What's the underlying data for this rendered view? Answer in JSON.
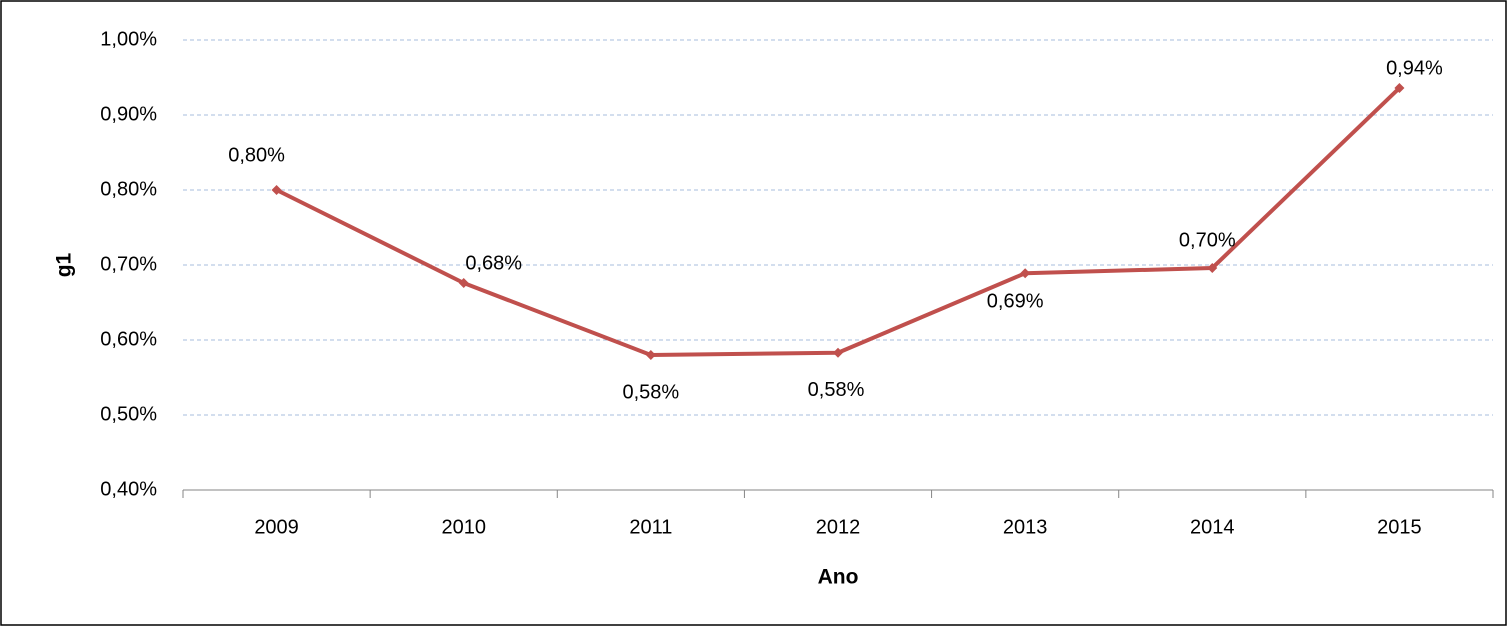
{
  "chart_data": {
    "type": "line",
    "x_label": "Ano",
    "y_label": "g1",
    "categories": [
      "2009",
      "2010",
      "2011",
      "2012",
      "2013",
      "2014",
      "2015"
    ],
    "series": [
      {
        "name": "g1",
        "color": "#c0504d",
        "values": [
          0.8,
          0.676,
          0.58,
          0.583,
          0.689,
          0.696,
          0.936
        ],
        "value_labels": [
          "0,80%",
          "0,68%",
          "0,58%",
          "0,58%",
          "0,69%",
          "0,70%",
          "0,94%"
        ]
      }
    ],
    "ylim": [
      0.4,
      1.0
    ],
    "yticks": [
      {
        "value": 0.4,
        "label": "0,40%"
      },
      {
        "value": 0.5,
        "label": "0,50%"
      },
      {
        "value": 0.6,
        "label": "0,60%"
      },
      {
        "value": 0.7,
        "label": "0,70%"
      },
      {
        "value": 0.8,
        "label": "0,80%"
      },
      {
        "value": 0.9,
        "label": "0,90%"
      },
      {
        "value": 1.0,
        "label": "1,00%"
      }
    ],
    "grid": true
  }
}
